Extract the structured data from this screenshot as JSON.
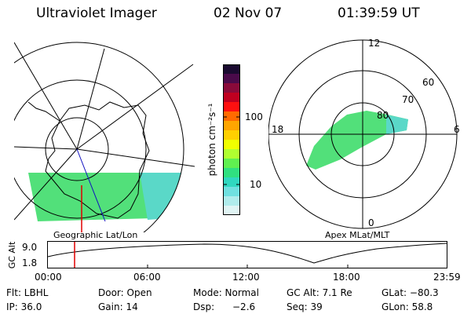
{
  "header": {
    "instrument": "Ultraviolet Imager",
    "date": "02 Nov 07",
    "time": "01:39:59 UT"
  },
  "left_map": {
    "label": "Geographic Lat/Lon"
  },
  "right_map": {
    "label": "Apex MLat/MLT",
    "mlt_labels": {
      "top": "12",
      "left": "18",
      "right": "6",
      "bottom": "0"
    },
    "lat_labels": [
      "60",
      "70",
      "80"
    ]
  },
  "colorbar": {
    "unit_label": "photon cm⁻²s⁻¹",
    "tick_100": "100",
    "tick_10": "10",
    "colors": [
      "#1a0a30",
      "#4a0a4a",
      "#8a0a3a",
      "#c00020",
      "#ff1010",
      "#ff6a00",
      "#ffa500",
      "#ffd000",
      "#f0ff00",
      "#b0ff30",
      "#60f050",
      "#30e080",
      "#30d8c0",
      "#70e0e0",
      "#b0ecec",
      "#e0f4f4"
    ]
  },
  "altitude_plot": {
    "ylabel": "GC Alt",
    "y_ticks": [
      "9.0",
      "1.8"
    ],
    "x_ticks": [
      "00:00",
      "06:00",
      "12:00",
      "18:00",
      "23:59"
    ]
  },
  "info_rows": [
    [
      "Flt: LBHL",
      "Door: Open",
      "Mode: Normal",
      "GC Alt: 7.1 Re",
      "GLat: −80.3"
    ],
    [
      "IP: 36.0",
      "Gain: 14",
      "Dsp:",
      "Seq: 39",
      "GLon:  58.8"
    ]
  ],
  "dsp_value": "−2.6"
}
